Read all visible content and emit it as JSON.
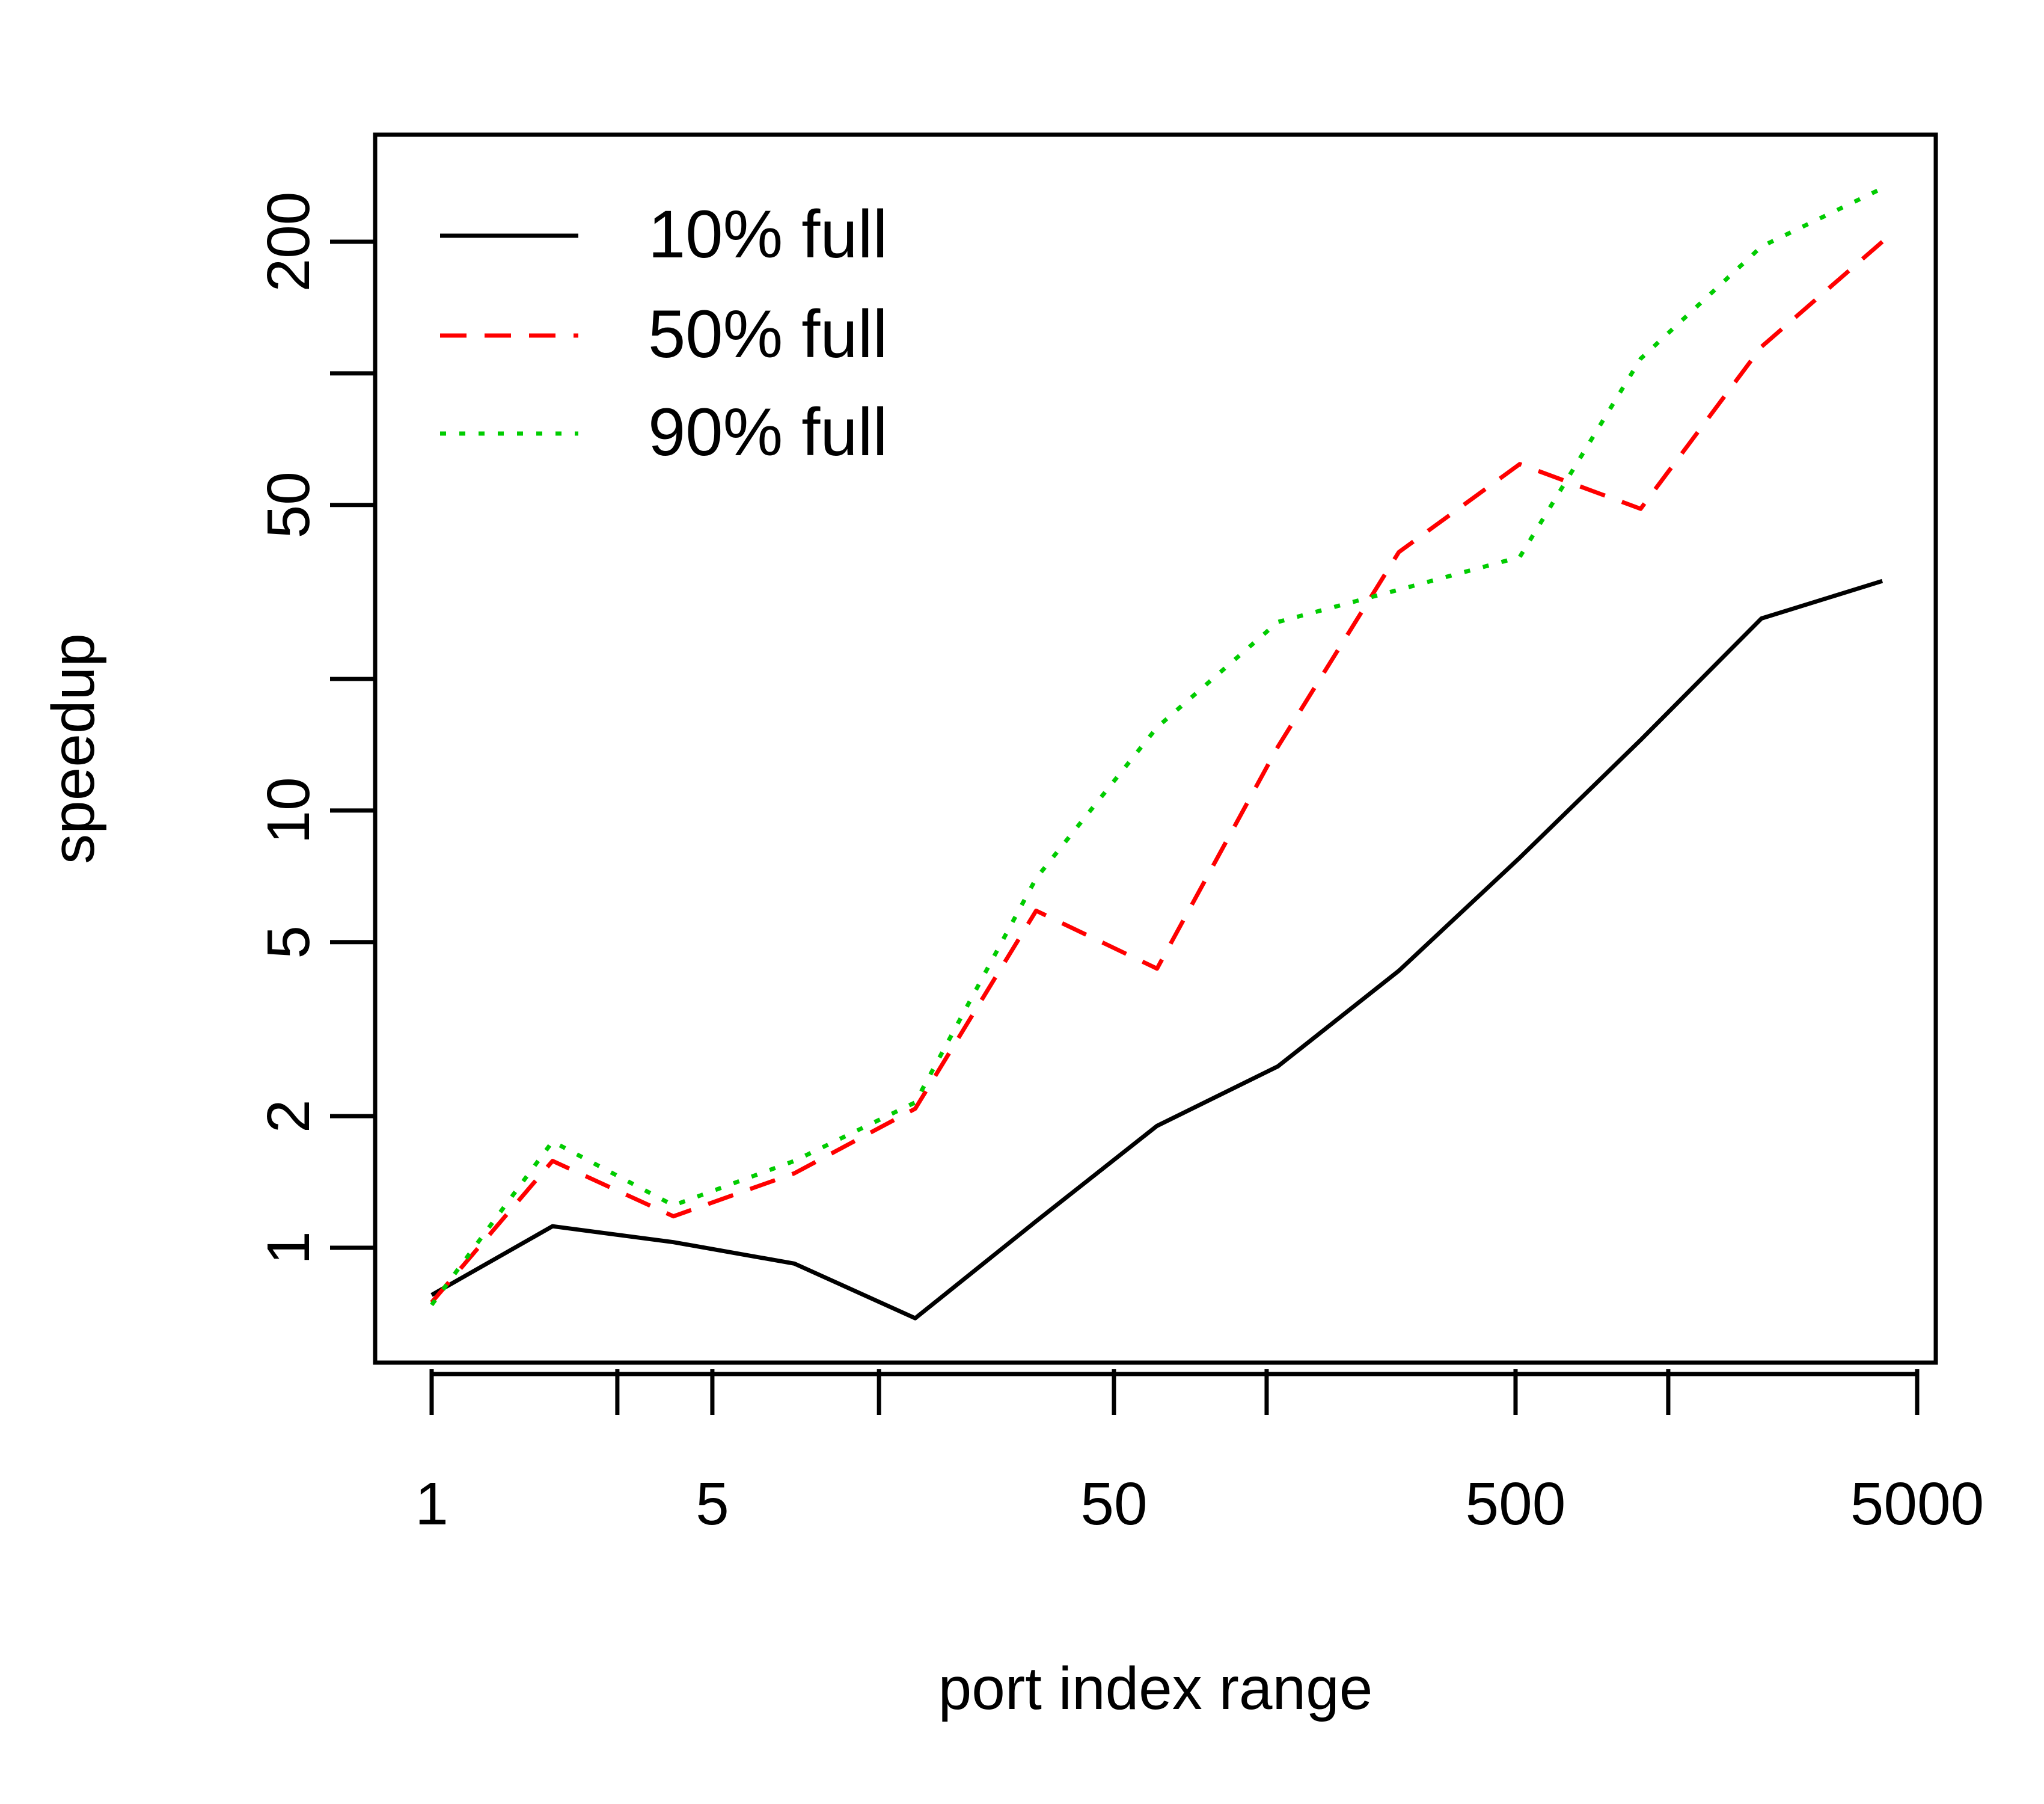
{
  "chart_data": {
    "type": "line",
    "title": "",
    "xlabel": "port index range",
    "ylabel": "speedup",
    "x_scale": "log",
    "y_scale": "log",
    "x": [
      1,
      2,
      4,
      8,
      16,
      32,
      64,
      128,
      256,
      512,
      1024,
      2048,
      4096
    ],
    "xlim": [
      0.85,
      5000
    ],
    "ylim": [
      0.55,
      300
    ],
    "x_ticks": [
      1,
      2.9,
      5,
      13,
      50,
      120,
      500,
      1200,
      5000
    ],
    "x_tick_labels": [
      {
        "value": 1,
        "label": "1"
      },
      {
        "value": 5,
        "label": "5"
      },
      {
        "value": 50,
        "label": "50"
      },
      {
        "value": 500,
        "label": "500"
      },
      {
        "value": 5000,
        "label": "5000"
      }
    ],
    "y_ticks": [
      1,
      2,
      5,
      10,
      20,
      50,
      100,
      200
    ],
    "y_tick_labels": [
      {
        "value": 1,
        "label": "1"
      },
      {
        "value": 2,
        "label": "2"
      },
      {
        "value": 5,
        "label": "5"
      },
      {
        "value": 10,
        "label": "10"
      },
      {
        "value": 50,
        "label": "50"
      },
      {
        "value": 200,
        "label": "200"
      }
    ],
    "series": [
      {
        "name": "10% full",
        "color": "#000000",
        "dash": "solid",
        "values": [
          0.78,
          1.12,
          1.03,
          0.92,
          0.69,
          1.15,
          1.9,
          2.6,
          4.3,
          7.8,
          14.5,
          27.5,
          33.5
        ]
      },
      {
        "name": "50% full",
        "color": "#ff0000",
        "dash": "dashed",
        "values": [
          0.75,
          1.58,
          1.18,
          1.48,
          2.08,
          5.9,
          4.35,
          14.0,
          39.0,
          62.0,
          49.0,
          115.0,
          200.0
        ]
      },
      {
        "name": "90% full",
        "color": "#00cc00",
        "dash": "dotted",
        "values": [
          0.74,
          1.75,
          1.25,
          1.58,
          2.15,
          7.0,
          15.5,
          27.0,
          32.0,
          38.0,
          108.0,
          195.0,
          265.0
        ]
      }
    ],
    "legend": {
      "position": "top-left"
    },
    "grid": false
  }
}
